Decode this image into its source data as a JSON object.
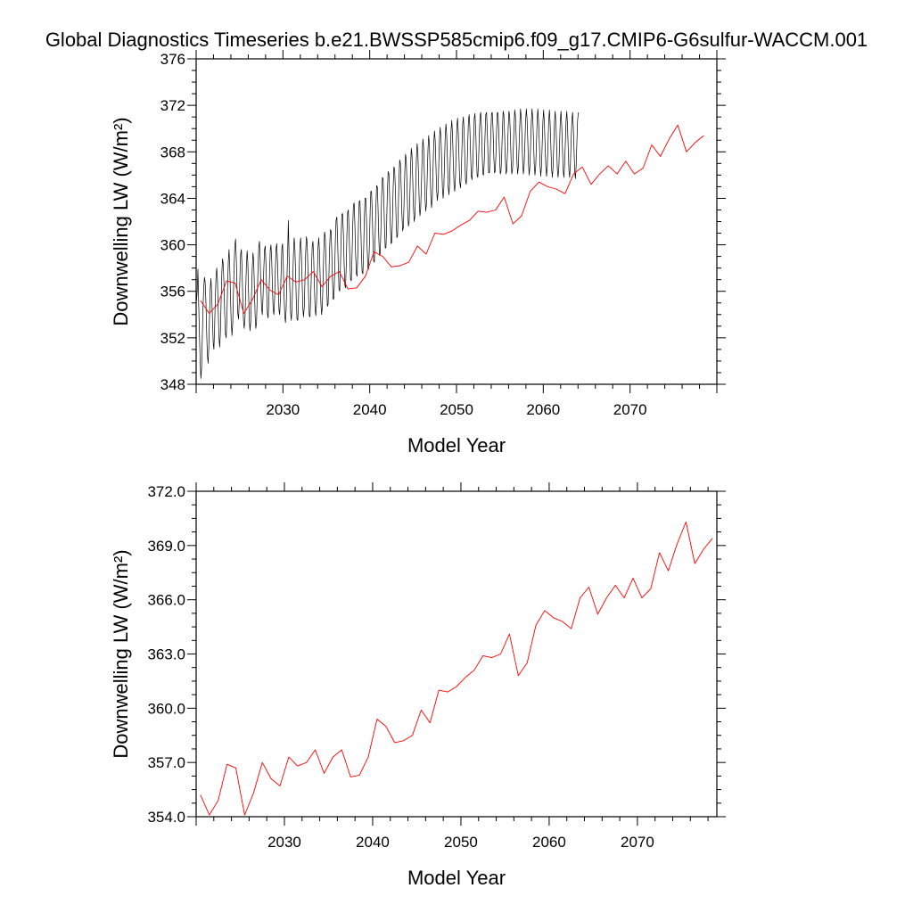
{
  "title": "Global Diagnostics Timeseries b.e21.BWSSP585cmip6.f09_g17.CMIP6-G6sulfur-WACCM.001",
  "colors": {
    "monthly": "#000000",
    "annual": "#ff0000",
    "axis": "#000000"
  },
  "chart_data": [
    {
      "type": "line",
      "xlabel": "Model Year",
      "ylabel": "Downwelling LW (W/m²)",
      "xlim": [
        2020,
        2080
      ],
      "ylim": [
        348,
        376
      ],
      "xticks": [
        2030,
        2040,
        2050,
        2060,
        2070
      ],
      "yticks": [
        348,
        352,
        356,
        360,
        364,
        368,
        372,
        376
      ],
      "ytick_labels": [
        "348",
        "352",
        "356",
        "360",
        "364",
        "368",
        "372",
        "376"
      ],
      "series": [
        {
          "kind": "monthly",
          "x_start": 2020.042,
          "x_step": 0.08333,
          "seasonal_amplitude": 3.0,
          "values": [
            355.2,
            356.0,
            357.9,
            355.0,
            352.3,
            350.0,
            348.5,
            349.4,
            352.0,
            354.6,
            356.3,
            357.2,
            356.8,
            355.0,
            352.4,
            350.5,
            349.8,
            351.2,
            353.9,
            356.2,
            357.1,
            355.8,
            353.6,
            351.6,
            351.0,
            352.9,
            355.4,
            357.3,
            358.0,
            356.9,
            354.5,
            352.0,
            351.2,
            352.4,
            355.1,
            357.6,
            358.8,
            358.3,
            356.6,
            354.1,
            352.3,
            352.0,
            353.7,
            356.6,
            358.6,
            359.6,
            358.1,
            355.6,
            353.3,
            352.2,
            353.2,
            355.8,
            358.2,
            359.9,
            360.5,
            358.9,
            356.4,
            354.2,
            353.6,
            355.0,
            357.3,
            359.2,
            359.6,
            357.9,
            355.3,
            353.5,
            352.8,
            353.7,
            356.1,
            358.3,
            359.5,
            358.4,
            355.8,
            353.6,
            352.6,
            353.4,
            355.7,
            357.9,
            359.3,
            358.7,
            356.4,
            354.0,
            352.8,
            353.3,
            355.5,
            358.0,
            359.8,
            360.3,
            358.7,
            356.3,
            354.5,
            354.0,
            355.5,
            357.8,
            359.6,
            359.9,
            358.3,
            355.9,
            354.1,
            353.7,
            355.1,
            357.5,
            359.5,
            360.0,
            358.6,
            356.2,
            354.4,
            354.0,
            355.4,
            357.7,
            359.7,
            360.1,
            358.6,
            356.2,
            354.4,
            354.0,
            355.4,
            357.7,
            359.7,
            360.1,
            358.4,
            355.8,
            353.9,
            353.3,
            354.6,
            357.1,
            359.2,
            362.1,
            359.1,
            356.4,
            354.3,
            353.5,
            354.5,
            356.9,
            359.1,
            360.6,
            359.8,
            357.7,
            355.2,
            353.6,
            353.5,
            355.3,
            357.9,
            359.9,
            360.6,
            359.3,
            357.0,
            354.6,
            353.8,
            354.7,
            357.2,
            359.5,
            360.7,
            360.2,
            358.1,
            355.6,
            353.9,
            353.8,
            355.6,
            358.1,
            359.9,
            360.3,
            358.9,
            356.5,
            354.5,
            353.9,
            355.0,
            357.5,
            359.8,
            360.6,
            359.5,
            357.2,
            355.0,
            354.0,
            354.6,
            356.9,
            359.5,
            361.1,
            360.7,
            358.7,
            356.3,
            354.7,
            354.9,
            357.0,
            359.6,
            361.3,
            361.2,
            359.4,
            357.0,
            355.3,
            355.4,
            357.5,
            360.3,
            362.1,
            362.4,
            360.6,
            358.1,
            356.2,
            356.0,
            358.0,
            360.6,
            362.6,
            362.7,
            361.1,
            358.6,
            356.6,
            356.3,
            358.1,
            360.9,
            362.8,
            363.0,
            361.2,
            358.8,
            357.0,
            356.9,
            358.9,
            361.6,
            363.4,
            363.6,
            361.8,
            359.3,
            357.5,
            357.3,
            359.2,
            361.9,
            363.7,
            363.8,
            362.0,
            359.5,
            357.7,
            357.5,
            359.4,
            362.2,
            364.0,
            364.0,
            362.2,
            359.7,
            358.0,
            357.9,
            359.9,
            362.7,
            364.6,
            364.6,
            362.8,
            360.3,
            358.6,
            358.5,
            360.5,
            363.3,
            365.1,
            365.0,
            363.2,
            360.7,
            359.1,
            359.2,
            361.3,
            364.1,
            365.8,
            365.7,
            363.8,
            361.3,
            359.7,
            359.8,
            361.9,
            364.6,
            366.3,
            366.1,
            364.2,
            361.7,
            360.1,
            360.2,
            362.3,
            365.0,
            366.7,
            366.5,
            364.6,
            362.1,
            360.6,
            360.8,
            363.0,
            365.7,
            367.3,
            367.0,
            365.1,
            362.6,
            361.2,
            361.5,
            363.7,
            366.3,
            367.8,
            367.4,
            365.4,
            363.0,
            361.6,
            362.0,
            364.2,
            366.8,
            368.3,
            367.7,
            365.7,
            363.3,
            362.0,
            362.5,
            364.8,
            367.3,
            368.7,
            368.1,
            366.0,
            363.7,
            362.5,
            363.1,
            365.3,
            367.8,
            369.1,
            368.4,
            366.3,
            364.0,
            362.9,
            363.5,
            365.7,
            368.2,
            369.4,
            368.6,
            366.5,
            364.2,
            363.2,
            363.9,
            366.2,
            368.6,
            369.8,
            369.0,
            366.9,
            364.7,
            363.8,
            364.5,
            366.8,
            369.1,
            370.1,
            369.2,
            367.1,
            364.9,
            364.0,
            364.9,
            367.2,
            369.5,
            370.4,
            369.4,
            367.2,
            365.0,
            364.3,
            365.3,
            367.7,
            369.9,
            370.7,
            369.6,
            367.4,
            365.2,
            364.6,
            365.7,
            368.0,
            370.2,
            370.9,
            369.7,
            367.5,
            365.4,
            364.9,
            366.0,
            368.3,
            370.4,
            371.0,
            369.8,
            367.6,
            365.6,
            365.2,
            366.4,
            368.7,
            370.7,
            371.2,
            370.0,
            367.8,
            365.9,
            365.6,
            366.8,
            369.0,
            370.9,
            371.3,
            370.0,
            367.8,
            366.0,
            365.8,
            367.1,
            369.2,
            371.1,
            371.4,
            370.0,
            367.8,
            366.1,
            366.0,
            367.3,
            369.4,
            371.2,
            371.4,
            370.0,
            367.8,
            366.2,
            366.2,
            367.5,
            369.6,
            371.3,
            371.4,
            369.9,
            367.7,
            366.2,
            366.3,
            367.7,
            369.8,
            371.4,
            371.3,
            369.8,
            367.6,
            366.1,
            366.3,
            367.8,
            370.0,
            371.5,
            371.2,
            369.6,
            367.5,
            366.1,
            366.4,
            368.0,
            370.1,
            371.5,
            371.1,
            369.5,
            367.4,
            366.1,
            366.5,
            368.1,
            370.2,
            371.6,
            371.1,
            369.4,
            367.3,
            366.1,
            366.6,
            368.3,
            370.4,
            371.7,
            371.0,
            369.3,
            367.2,
            366.1,
            366.7,
            368.4,
            370.5,
            371.7,
            370.9,
            369.1,
            367.0,
            366.0,
            366.7,
            368.5,
            370.5,
            371.7,
            370.8,
            369.0,
            366.9,
            366.0,
            366.7,
            368.5,
            370.6,
            371.7,
            370.7,
            368.9,
            366.8,
            365.9,
            366.7,
            368.6,
            370.6,
            371.6,
            370.6,
            368.7,
            366.7,
            365.9,
            366.7,
            368.6,
            370.6,
            371.6,
            370.5,
            368.6,
            366.6,
            365.8,
            366.7,
            368.6,
            370.6,
            371.5,
            370.4,
            368.5,
            366.5,
            365.8,
            366.7,
            368.7,
            370.7,
            371.5,
            370.3,
            368.4,
            366.5,
            365.8,
            366.8,
            368.8,
            370.7,
            371.5,
            370.3,
            368.3,
            366.4,
            365.8,
            366.8,
            368.8,
            370.7,
            371.4,
            370.2,
            368.2,
            366.3,
            365.7,
            366.8,
            368.8,
            370.7,
            371.4
          ]
        },
        {
          "kind": "annual",
          "x": [
            2020.5,
            2021.5,
            2022.5,
            2023.5,
            2024.5,
            2025.5,
            2026.5,
            2027.5,
            2028.5,
            2029.5,
            2030.5,
            2031.5,
            2032.5,
            2033.5,
            2034.5,
            2035.5,
            2036.5,
            2037.5,
            2038.5,
            2039.5,
            2040.5,
            2041.5,
            2042.5,
            2043.5,
            2044.5,
            2045.5,
            2046.5,
            2047.5,
            2048.5,
            2049.5,
            2050.5,
            2051.5,
            2052.5,
            2053.5,
            2054.5,
            2055.5,
            2056.5,
            2057.5,
            2058.5,
            2059.5,
            2060.5,
            2061.5,
            2062.5,
            2063.5,
            2064.5,
            2065.5,
            2066.5,
            2067.5,
            2068.5,
            2069.5,
            2070.5,
            2071.5,
            2072.5,
            2073.5,
            2074.5,
            2075.5,
            2076.5,
            2077.5,
            2078.5
          ],
          "values": [
            355.2,
            354.1,
            354.9,
            356.9,
            356.7,
            354.1,
            355.3,
            357.0,
            356.1,
            355.7,
            357.3,
            356.8,
            357.0,
            357.7,
            356.4,
            357.3,
            357.7,
            356.2,
            356.3,
            357.3,
            359.4,
            359.0,
            358.1,
            358.2,
            358.5,
            359.9,
            359.2,
            361.0,
            360.9,
            361.2,
            361.7,
            362.1,
            362.9,
            362.8,
            363.0,
            364.1,
            361.8,
            362.5,
            364.6,
            365.4,
            365.0,
            364.8,
            364.4,
            366.1,
            366.7,
            365.2,
            366.1,
            366.8,
            366.1,
            367.2,
            366.1,
            366.6,
            368.6,
            367.6,
            369.1,
            370.3,
            368.0,
            368.8,
            369.4
          ]
        }
      ]
    },
    {
      "type": "line",
      "xlabel": "Model Year",
      "ylabel": "Downwelling LW (W/m²)",
      "xlim": [
        2020,
        2079
      ],
      "ylim": [
        354,
        372
      ],
      "xticks": [
        2030,
        2040,
        2050,
        2060,
        2070
      ],
      "yticks": [
        354,
        357,
        360,
        363,
        366,
        369,
        372
      ],
      "ytick_labels": [
        "354.0",
        "357.0",
        "360.0",
        "363.0",
        "366.0",
        "369.0",
        "372.0"
      ],
      "series": [
        {
          "kind": "annual",
          "x": [
            2020.5,
            2021.5,
            2022.5,
            2023.5,
            2024.5,
            2025.5,
            2026.5,
            2027.5,
            2028.5,
            2029.5,
            2030.5,
            2031.5,
            2032.5,
            2033.5,
            2034.5,
            2035.5,
            2036.5,
            2037.5,
            2038.5,
            2039.5,
            2040.5,
            2041.5,
            2042.5,
            2043.5,
            2044.5,
            2045.5,
            2046.5,
            2047.5,
            2048.5,
            2049.5,
            2050.5,
            2051.5,
            2052.5,
            2053.5,
            2054.5,
            2055.5,
            2056.5,
            2057.5,
            2058.5,
            2059.5,
            2060.5,
            2061.5,
            2062.5,
            2063.5,
            2064.5,
            2065.5,
            2066.5,
            2067.5,
            2068.5,
            2069.5,
            2070.5,
            2071.5,
            2072.5,
            2073.5,
            2074.5,
            2075.5,
            2076.5,
            2077.5,
            2078.5
          ],
          "values": [
            355.2,
            354.1,
            354.9,
            356.9,
            356.7,
            354.1,
            355.3,
            357.0,
            356.1,
            355.7,
            357.3,
            356.8,
            357.0,
            357.7,
            356.4,
            357.3,
            357.7,
            356.2,
            356.3,
            357.3,
            359.4,
            359.0,
            358.1,
            358.2,
            358.5,
            359.9,
            359.2,
            361.0,
            360.9,
            361.2,
            361.7,
            362.1,
            362.9,
            362.8,
            363.0,
            364.1,
            361.8,
            362.5,
            364.6,
            365.4,
            365.0,
            364.8,
            364.4,
            366.1,
            366.7,
            365.2,
            366.1,
            366.8,
            366.1,
            367.2,
            366.1,
            366.6,
            368.6,
            367.6,
            369.1,
            370.3,
            368.0,
            368.8,
            369.4
          ]
        }
      ]
    }
  ]
}
